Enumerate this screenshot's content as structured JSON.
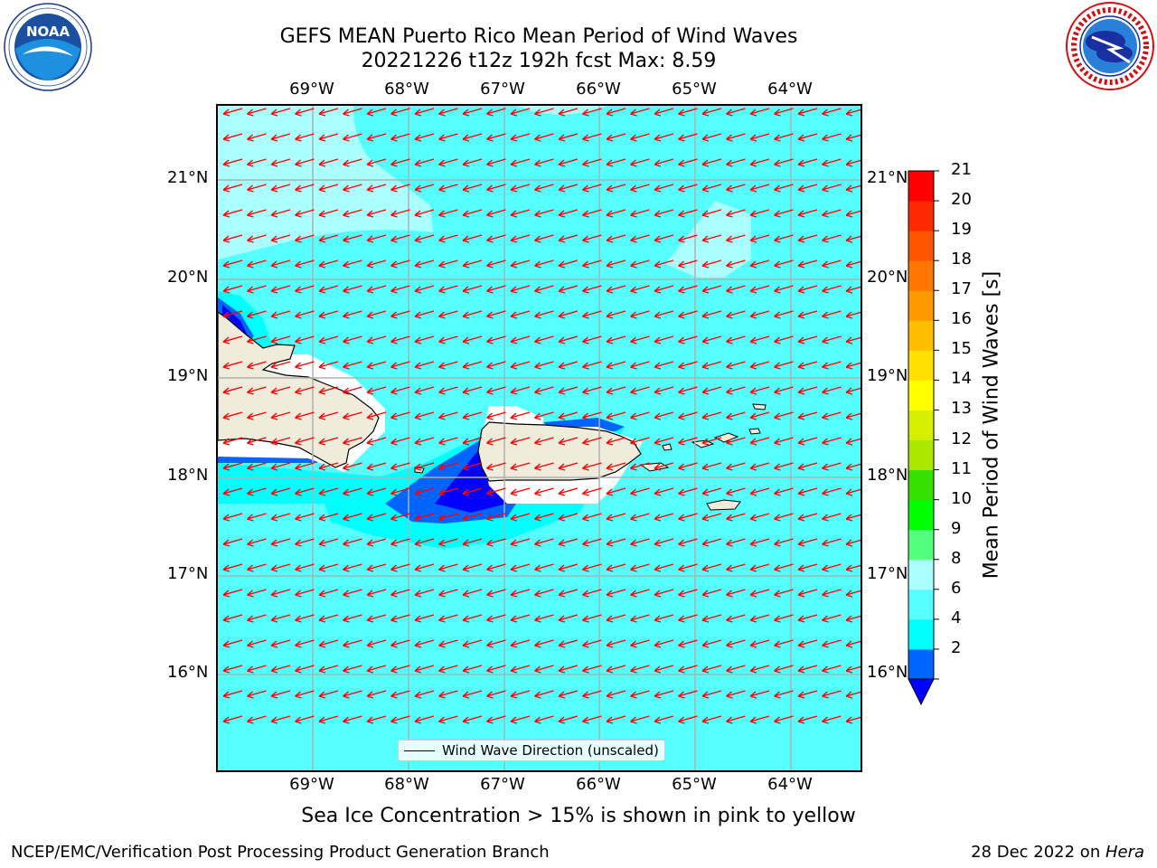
{
  "header": {
    "title_line1": "GEFS MEAN Puerto Rico Mean Period of Wind Waves",
    "title_line2": "20221226 t12z 192h fcst   Max: 8.59"
  },
  "logos": {
    "left": {
      "text": "NOAA",
      "icon": "noaa-logo-icon",
      "ring_text": "NATIONAL OCEANIC AND ATMOSPHERIC ADMINISTRATION · U.S. DEPARTMENT OF COMMERCE"
    },
    "right": {
      "icon": "nws-logo-icon",
      "ring_text": "NATIONAL WEATHER SERVICE"
    }
  },
  "map": {
    "lon_labels": [
      "69°W",
      "68°W",
      "67°W",
      "66°W",
      "65°W",
      "64°W"
    ],
    "lat_labels": [
      "21°N",
      "20°N",
      "19°N",
      "18°N",
      "17°N",
      "16°N"
    ],
    "extent": {
      "lon_min": -70.0,
      "lon_max": -63.25,
      "lat_min": 15.05,
      "lat_max": 21.75
    },
    "land_color": "#efecdc",
    "arrow_color": "#ff0000",
    "legend_label": "Wind Wave Direction (unscaled)"
  },
  "colorbar": {
    "label": "Mean Period of Wind Waves [s]",
    "ticks": [
      "21",
      "20",
      "19",
      "18",
      "17",
      "16",
      "15",
      "14",
      "13",
      "12",
      "11",
      "10",
      "9",
      "8",
      "6",
      "4",
      "2"
    ],
    "levels": [
      2,
      4,
      6,
      8,
      9,
      10,
      11,
      12,
      13,
      14,
      15,
      16,
      17,
      18,
      19,
      20,
      21
    ],
    "colors": [
      "#0065ff",
      "#00ffff",
      "#55ffff",
      "#aaffff",
      "#55ff80",
      "#00ff00",
      "#35e000",
      "#aae600",
      "#d4f000",
      "#ffff00",
      "#ffe000",
      "#ffbf00",
      "#ff9900",
      "#ff7700",
      "#ff5500",
      "#ff2a00",
      "#ff0000"
    ],
    "under_color": "#0000ff"
  },
  "footer": {
    "sea_ice_note": "Sea Ice Concentration > 15% is shown in pink to yellow",
    "branch": "NCEP/EMC/Verification Post Processing Product Generation Branch",
    "date_text": "28 Dec 2022 on ",
    "machine": "Hera"
  }
}
